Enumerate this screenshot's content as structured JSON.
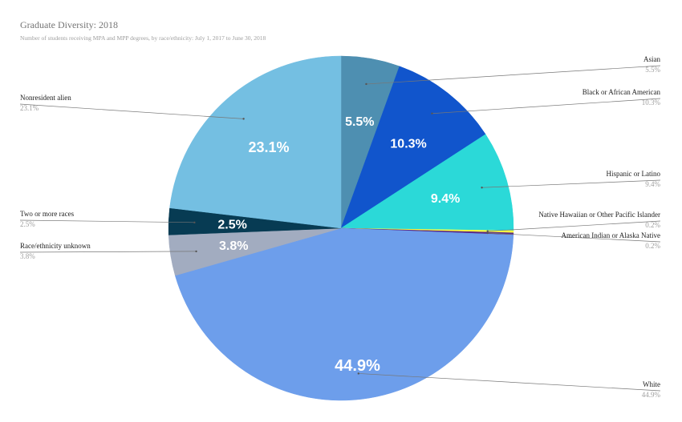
{
  "chart_data": {
    "type": "pie",
    "title": "Graduate Diversity: 2018",
    "subtitle": "Number of students receiving MPA and MPP degrees, by race/ethnicity: July 1, 2017 to June 30, 2018",
    "legend": "outside-with-leader-lines",
    "slices": [
      {
        "label": "Asian",
        "value": 5.5,
        "display": "5.5%",
        "color": "#4e8fb1"
      },
      {
        "label": "Black or African American",
        "value": 10.3,
        "display": "10.3%",
        "color": "#1155cc"
      },
      {
        "label": "Hispanic or Latino",
        "value": 9.4,
        "display": "9.4%",
        "color": "#2bd9d8"
      },
      {
        "label": "Native Hawaiian or Other Pacific Islander",
        "value": 0.2,
        "display": "0.2%",
        "color": "#ffff40"
      },
      {
        "label": "American Indian or Alaska Native",
        "value": 0.2,
        "display": "0.2%",
        "color": "#5b2a86"
      },
      {
        "label": "White",
        "value": 44.9,
        "display": "44.9%",
        "color": "#6d9eeb"
      },
      {
        "label": "Race/ethnicity unknown",
        "value": 3.8,
        "display": "3.8%",
        "color": "#a2acc0"
      },
      {
        "label": "Two or more races",
        "value": 2.5,
        "display": "2.5%",
        "color": "#073b53"
      },
      {
        "label": "Nonresident alien",
        "value": 23.1,
        "display": "23.1%",
        "color": "#74bfe2"
      }
    ]
  }
}
